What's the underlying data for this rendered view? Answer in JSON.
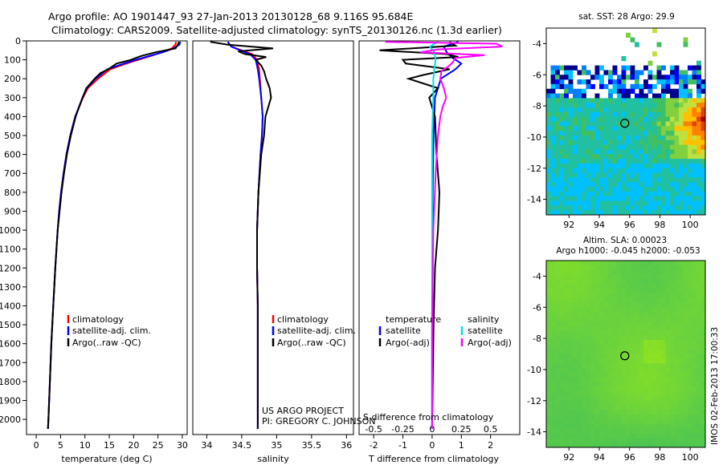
{
  "title_line1": "Argo profile: AO 1901447_93 27-Jan-2013 20130128_68 9.116S 95.684E",
  "title_line2": "Climatology: CARS2009. Satellite-adjusted climatology: synTS_20130126.nc (1.3d earlier)",
  "credit_line1": "US ARGO PROJECT",
  "credit_line2": "PI: GREGORY C. JOHNSON",
  "side_stamp": "IMOS 02-Feb-2013 17:00:33",
  "colors": {
    "climatology": "#ff0000",
    "satellite": "#0000ff",
    "argo": "#000000",
    "satellite_salinity": "#00e0e0",
    "argo_salinity": "#ff00ff"
  },
  "chart_data": [
    {
      "id": "temperature",
      "type": "line",
      "xlabel": "temperature (deg C)",
      "ylabel": "",
      "xlim": [
        -2,
        31
      ],
      "ylim": [
        2080,
        0
      ],
      "xticks": [
        0,
        5,
        10,
        15,
        20,
        25,
        30
      ],
      "yticks": [
        0,
        100,
        200,
        300,
        400,
        500,
        600,
        700,
        800,
        900,
        1000,
        1100,
        1200,
        1300,
        1400,
        1500,
        1600,
        1700,
        1800,
        1900,
        2000
      ],
      "legend": [
        "climatology",
        "satellite-adj. clim.",
        "Argo(..raw -QC)"
      ],
      "series": [
        {
          "name": "climatology",
          "depth": [
            5,
            20,
            40,
            60,
            80,
            100,
            120,
            150,
            200,
            250,
            300,
            400,
            500,
            600,
            700,
            800,
            900,
            1000,
            1200,
            1400,
            1600,
            1800,
            2000,
            2050
          ],
          "values": [
            28.7,
            28.6,
            27.8,
            25.8,
            23.5,
            21.0,
            18.5,
            15.2,
            12.7,
            10.6,
            9.6,
            8.0,
            7.0,
            6.2,
            5.6,
            5.1,
            4.7,
            4.4,
            3.9,
            3.5,
            3.1,
            2.8,
            2.5,
            2.4
          ]
        },
        {
          "name": "satellite-adj. clim.",
          "depth": [
            5,
            20,
            40,
            60,
            80,
            100,
            120,
            150,
            200,
            250,
            300,
            400,
            500,
            600,
            700,
            800,
            900,
            1000,
            1200,
            1400,
            1600,
            1800,
            2000,
            2050
          ],
          "values": [
            29.6,
            29.4,
            28.2,
            26.0,
            23.2,
            20.5,
            18.0,
            14.6,
            12.2,
            10.4,
            9.5,
            8.0,
            7.0,
            6.2,
            5.6,
            5.1,
            4.7,
            4.4,
            3.9,
            3.5,
            3.1,
            2.8,
            2.5,
            2.4
          ]
        },
        {
          "name": "Argo(..raw -QC)",
          "depth": [
            5,
            20,
            40,
            60,
            80,
            100,
            120,
            150,
            170,
            200,
            250,
            300,
            400,
            500,
            600,
            700,
            800,
            900,
            1000,
            1200,
            1400,
            1600,
            1800,
            2000,
            2050
          ],
          "values": [
            29.3,
            29.1,
            28.6,
            24.5,
            21.5,
            19.5,
            16.5,
            14.8,
            13.2,
            12.0,
            10.3,
            9.5,
            8.1,
            7.1,
            6.3,
            5.7,
            5.2,
            4.8,
            4.4,
            3.9,
            3.5,
            3.1,
            2.8,
            2.5,
            2.4
          ]
        }
      ]
    },
    {
      "id": "salinity",
      "type": "line",
      "xlabel": "salinity",
      "xlim": [
        33.8,
        36.1
      ],
      "ylim": [
        2080,
        0
      ],
      "xticks": [
        34,
        34.5,
        35,
        35.5,
        36
      ],
      "legend": [
        "climatology",
        "satellite-adj. clim.",
        "Argo(..raw -QC)"
      ],
      "series": [
        {
          "name": "climatology",
          "depth": [
            5,
            30,
            50,
            70,
            100,
            150,
            200,
            300,
            400,
            500,
            600,
            800,
            1000,
            1200,
            1400,
            1600,
            1800,
            2000,
            2050
          ],
          "values": [
            34.3,
            34.35,
            34.5,
            34.65,
            34.72,
            34.75,
            34.76,
            34.78,
            34.8,
            34.79,
            34.77,
            34.74,
            34.72,
            34.72,
            34.73,
            34.73,
            34.73,
            34.73,
            34.73
          ]
        },
        {
          "name": "satellite-adj. clim.",
          "depth": [
            5,
            30,
            50,
            70,
            100,
            150,
            200,
            300,
            400,
            500,
            600,
            800,
            1000,
            1200,
            1400,
            1600,
            1800,
            2000,
            2050
          ],
          "values": [
            34.3,
            34.35,
            34.48,
            34.62,
            34.7,
            34.73,
            34.75,
            34.78,
            34.8,
            34.79,
            34.77,
            34.74,
            34.72,
            34.72,
            34.73,
            34.73,
            34.73,
            34.73,
            34.73
          ]
        },
        {
          "name": "Argo(..raw -QC)",
          "depth": [
            5,
            20,
            40,
            55,
            70,
            85,
            100,
            130,
            160,
            200,
            250,
            300,
            350,
            400,
            500,
            600,
            800,
            1000,
            1200,
            1400,
            1600,
            1800,
            2000,
            2050
          ],
          "values": [
            34.05,
            34.3,
            34.95,
            34.45,
            34.55,
            34.85,
            34.7,
            34.78,
            34.82,
            34.85,
            34.9,
            34.92,
            34.88,
            34.84,
            34.82,
            34.78,
            34.74,
            34.72,
            34.72,
            34.73,
            34.73,
            34.73,
            34.73,
            34.73
          ]
        }
      ]
    },
    {
      "id": "difference",
      "type": "line",
      "xlabel": "T difference from climatology",
      "xlabel_top": "S difference from climatology",
      "xlim": [
        -2.5,
        3
      ],
      "ylim": [
        2080,
        0
      ],
      "xticks": [
        -2,
        -1,
        0,
        1,
        2
      ],
      "xticks_top": [
        -0.5,
        -0.25,
        0,
        0.25,
        0.5
      ],
      "legend_headers": [
        "temperature",
        "salinity"
      ],
      "legend": [
        "satellite",
        "Argo(-adj)",
        "satellite",
        "Argo(-adj)"
      ],
      "series": [
        {
          "name": "T satellite",
          "depth": [
            5,
            30,
            60,
            90,
            120,
            150,
            200,
            300,
            500,
            800,
            1200,
            1600,
            2050
          ],
          "values": [
            0.9,
            0.4,
            0.5,
            0.7,
            1.0,
            0.8,
            0.3,
            0.1,
            0.05,
            0.02,
            0.01,
            0.0,
            0.0
          ]
        },
        {
          "name": "T Argo(-adj)",
          "depth": [
            5,
            25,
            50,
            70,
            85,
            100,
            120,
            150,
            180,
            200,
            250,
            300,
            400,
            600,
            800,
            1000,
            1200,
            1500,
            2050
          ],
          "values": [
            0.6,
            0.8,
            -1.8,
            0.5,
            0.9,
            -1.0,
            -0.9,
            0.6,
            -0.3,
            -0.8,
            0.2,
            -0.1,
            0.1,
            0.15,
            0.25,
            0.2,
            0.1,
            0.05,
            0.0
          ]
        },
        {
          "name": "S satellite",
          "depth": [
            5,
            30,
            60,
            100,
            150,
            200,
            300,
            500,
            1000,
            1500,
            2050
          ],
          "values": [
            0.05,
            -0.02,
            0.02,
            0.03,
            0.02,
            0.01,
            0.01,
            0.0,
            0.0,
            0.0,
            0.0
          ]
        },
        {
          "name": "S Argo(-adj)",
          "depth": [
            5,
            15,
            30,
            45,
            60,
            75,
            90,
            110,
            130,
            160,
            200,
            250,
            300,
            350,
            400,
            500,
            700,
            1000,
            1500,
            2050
          ],
          "values": [
            -0.4,
            0.55,
            0.6,
            0.05,
            -0.1,
            0.45,
            0.2,
            0.18,
            0.15,
            0.08,
            0.07,
            0.1,
            0.12,
            0.09,
            0.07,
            0.05,
            0.03,
            0.01,
            0.0,
            0.0
          ]
        }
      ]
    },
    {
      "id": "sst-map",
      "type": "heatmap",
      "title": "sat. SST: 28 Argo: 29.9",
      "xticks": [
        92,
        94,
        96,
        98,
        100
      ],
      "yticks": [
        -4,
        -6,
        -8,
        -10,
        -12,
        -14
      ],
      "xlim": [
        90.5,
        101
      ],
      "ylim": [
        -15,
        -3
      ],
      "argo_position": {
        "lon": 95.684,
        "lat": -9.116
      },
      "colormap": [
        "#00008b",
        "#0000ff",
        "#0080ff",
        "#00c0ff",
        "#20c0a0",
        "#40c060",
        "#80d040",
        "#c0e040",
        "#ffc000",
        "#ff8000",
        "#e04000",
        "#b00000"
      ]
    },
    {
      "id": "sla-map",
      "type": "heatmap",
      "title": "Altim. SLA: 0.00023",
      "subtitle": "Argo h1000: -0.045 h2000: -0.053",
      "xticks": [
        92,
        94,
        96,
        98,
        100
      ],
      "yticks": [
        -4,
        -6,
        -8,
        -10,
        -12,
        -14
      ],
      "xlim": [
        90.5,
        101
      ],
      "ylim": [
        -15,
        -3
      ],
      "argo_position": {
        "lon": 95.684,
        "lat": -9.116
      }
    }
  ]
}
